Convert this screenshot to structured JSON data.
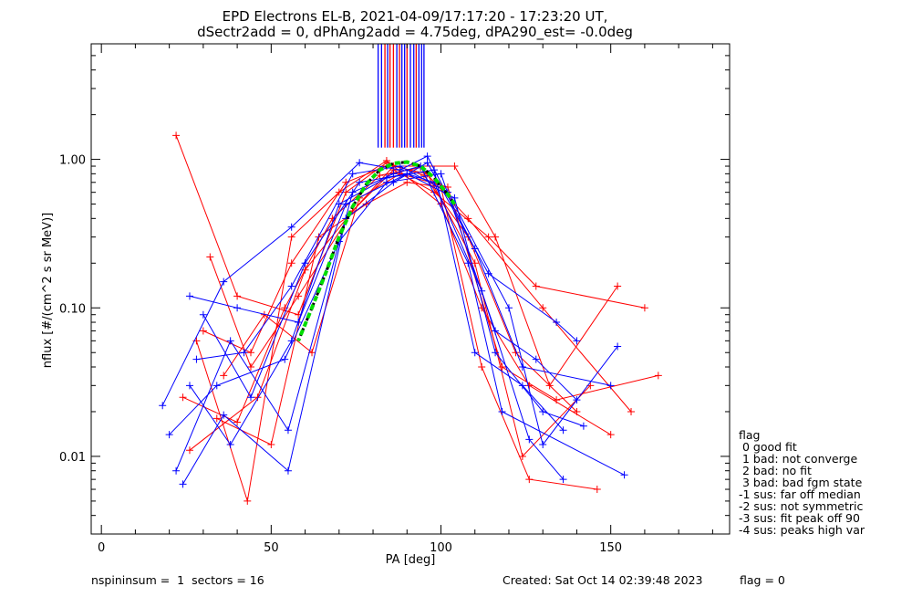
{
  "title_line1": "EPD Electrons EL-B, 2021-04-09/17:17:20 - 17:23:20 UT,",
  "title_line2": "dSectr2add = 0, dPhAng2add = 4.75deg, dPA290_est=  -0.0deg",
  "footer": {
    "left": "nspininsum =  1  sectors = 16",
    "right": "Created: Sat Oct 14 02:39:48 2023",
    "flag": "flag = 0"
  },
  "legend": {
    "title": "flag",
    "entries": [
      " 0 good fit",
      " 1 bad: not converge",
      " 2 bad: no fit",
      " 3 bad: bad fgm state",
      "-1 sus: far off median",
      "-2 sus: not symmetric",
      "-3 sus: fit peak off 90",
      "-4 sus: peaks high var"
    ]
  },
  "colors": {
    "series_a": "#ff0000",
    "series_b": "#0000ff",
    "fit_curve": "#00dd00",
    "fit_curve_dash": "#000000"
  },
  "chart_data": {
    "type": "line",
    "xlabel": "PA [deg]",
    "ylabel": "nflux [#/(cm^2 s sr MeV)]",
    "xlim": [
      -3,
      185
    ],
    "ylim": [
      0.003,
      6.0
    ],
    "yscale": "log",
    "xticks": [
      0,
      50,
      100,
      150
    ],
    "xtick_labels": [
      "0",
      "50",
      "100",
      "150"
    ],
    "yticks": [
      0.01,
      0.1,
      1.0
    ],
    "ytick_labels": [
      "0.01",
      "0.10",
      "1.00"
    ],
    "markers": "+",
    "series": [
      {
        "color": "red",
        "x": [
          22,
          40,
          58,
          72,
          84,
          95,
          108,
          122,
          140
        ],
        "y": [
          1.45,
          0.12,
          0.09,
          0.6,
          0.95,
          0.78,
          0.3,
          0.05,
          0.02
        ]
      },
      {
        "color": "red",
        "x": [
          32,
          44,
          58,
          74,
          86,
          96,
          110,
          124,
          144
        ],
        "y": [
          0.22,
          0.04,
          0.12,
          0.45,
          0.9,
          0.8,
          0.2,
          0.01,
          0.03
        ]
      },
      {
        "color": "red",
        "x": [
          28,
          43,
          56,
          70,
          84,
          100,
          112,
          126,
          150
        ],
        "y": [
          0.06,
          0.005,
          0.3,
          0.6,
          0.98,
          0.5,
          0.1,
          0.03,
          0.014
        ]
      },
      {
        "color": "red",
        "x": [
          36,
          48,
          62,
          76,
          88,
          102,
          118,
          134,
          164
        ],
        "y": [
          0.035,
          0.09,
          0.05,
          0.55,
          0.8,
          0.65,
          0.04,
          0.024,
          0.035
        ]
      },
      {
        "color": "red",
        "x": [
          26,
          46,
          60,
          74,
          86,
          98,
          114,
          128,
          160
        ],
        "y": [
          0.011,
          0.025,
          0.18,
          0.45,
          0.85,
          0.6,
          0.3,
          0.14,
          0.1
        ]
      },
      {
        "color": "red",
        "x": [
          30,
          44,
          56,
          72,
          84,
          104,
          116,
          132,
          152
        ],
        "y": [
          0.07,
          0.05,
          0.2,
          0.7,
          0.9,
          0.9,
          0.3,
          0.03,
          0.14
        ]
      },
      {
        "color": "red",
        "x": [
          34,
          50,
          64,
          78,
          90,
          100,
          112,
          126,
          146
        ],
        "y": [
          0.018,
          0.012,
          0.3,
          0.5,
          0.7,
          0.65,
          0.04,
          0.007,
          0.006
        ]
      },
      {
        "color": "red",
        "x": [
          24,
          40,
          54,
          68,
          82,
          94,
          108,
          130,
          156
        ],
        "y": [
          0.025,
          0.017,
          0.1,
          0.4,
          0.78,
          0.88,
          0.4,
          0.1,
          0.02
        ]
      },
      {
        "color": "blue",
        "x": [
          18,
          36,
          56,
          76,
          88,
          96,
          110,
          124,
          150
        ],
        "y": [
          0.022,
          0.15,
          0.35,
          0.95,
          0.85,
          1.05,
          0.25,
          0.04,
          0.03
        ]
      },
      {
        "color": "blue",
        "x": [
          22,
          38,
          55,
          74,
          86,
          94,
          108,
          118,
          154
        ],
        "y": [
          0.008,
          0.06,
          0.015,
          0.6,
          0.8,
          0.9,
          0.2,
          0.02,
          0.0075
        ]
      },
      {
        "color": "blue",
        "x": [
          26,
          40,
          58,
          72,
          90,
          98,
          112,
          126,
          136
        ],
        "y": [
          0.12,
          0.1,
          0.08,
          0.5,
          0.8,
          0.7,
          0.13,
          0.013,
          0.007
        ]
      },
      {
        "color": "blue",
        "x": [
          20,
          34,
          54,
          70,
          84,
          100,
          116,
          128,
          140
        ],
        "y": [
          0.014,
          0.03,
          0.045,
          0.28,
          0.7,
          0.8,
          0.07,
          0.045,
          0.024
        ]
      },
      {
        "color": "blue",
        "x": [
          28,
          42,
          56,
          74,
          88,
          102,
          120,
          130,
          152
        ],
        "y": [
          0.045,
          0.05,
          0.14,
          0.8,
          0.9,
          0.6,
          0.1,
          0.012,
          0.055
        ]
      },
      {
        "color": "blue",
        "x": [
          24,
          36,
          55,
          72,
          86,
          96,
          114,
          134,
          140
        ],
        "y": [
          0.0065,
          0.019,
          0.008,
          0.4,
          0.7,
          0.95,
          0.17,
          0.08,
          0.06
        ]
      },
      {
        "color": "blue",
        "x": [
          30,
          44,
          60,
          76,
          90,
          104,
          116,
          130,
          142
        ],
        "y": [
          0.09,
          0.025,
          0.2,
          0.7,
          0.8,
          0.55,
          0.05,
          0.02,
          0.016
        ]
      },
      {
        "color": "blue",
        "x": [
          26,
          38,
          56,
          70,
          84,
          98,
          110,
          124,
          136
        ],
        "y": [
          0.03,
          0.012,
          0.06,
          0.5,
          0.75,
          0.85,
          0.05,
          0.03,
          0.015
        ]
      }
    ],
    "fit_curve": {
      "x": [
        58,
        62,
        66,
        70,
        74,
        78,
        82,
        86,
        90,
        94,
        98,
        102,
        104
      ],
      "y": [
        0.06,
        0.1,
        0.17,
        0.3,
        0.48,
        0.68,
        0.85,
        0.94,
        0.96,
        0.9,
        0.75,
        0.58,
        0.5
      ]
    },
    "sector_lines": {
      "x": [
        81.5,
        82.5,
        83.5,
        84.3,
        85.0,
        86.0,
        87.0,
        87.8,
        88.5,
        89.3,
        90.0,
        91.0,
        92.0,
        92.7,
        93.5,
        94.3,
        95.0
      ],
      "colors": [
        "blue",
        "blue",
        "red",
        "blue",
        "red",
        "red",
        "blue",
        "red",
        "blue",
        "blue",
        "red",
        "blue",
        "blue",
        "red",
        "blue",
        "blue",
        "blue"
      ],
      "y_from": 1.2,
      "y_to": 6.0
    }
  }
}
